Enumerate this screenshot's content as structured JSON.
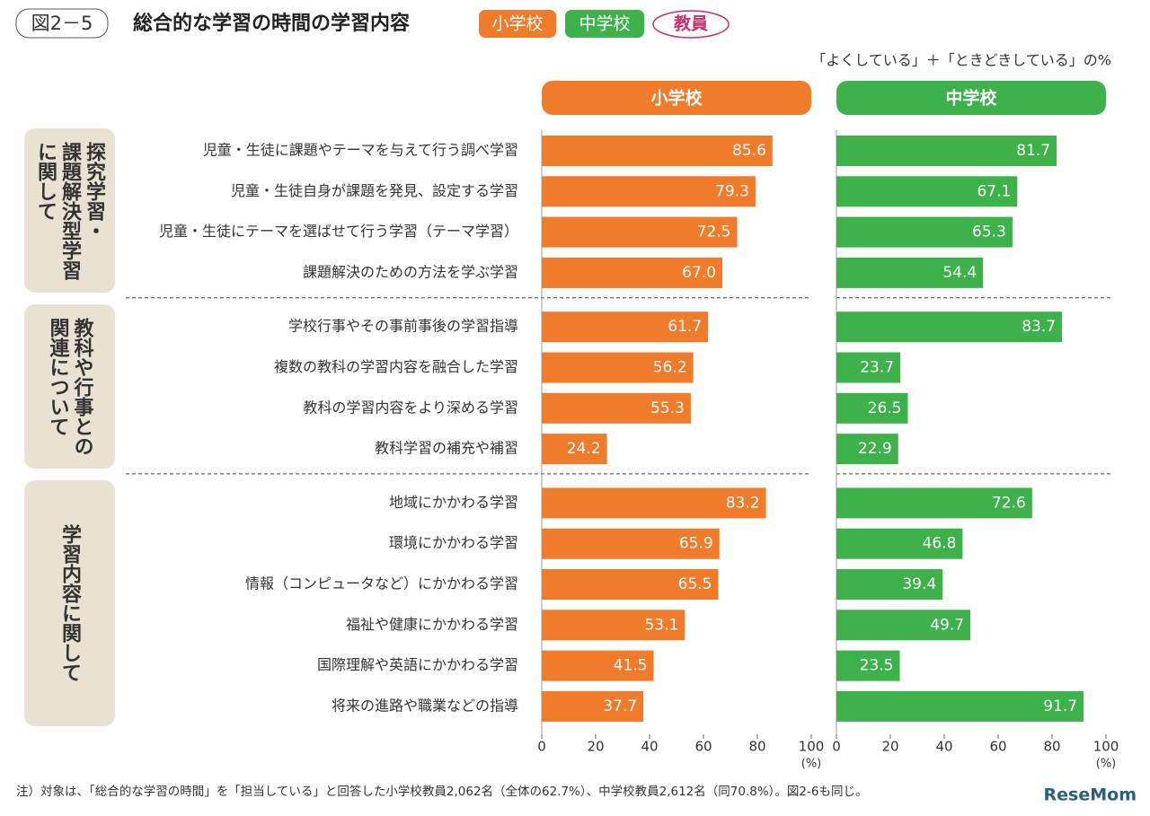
{
  "header": {
    "figure_label": "図2－5",
    "title": "総合的な学習の時間の学習内容",
    "badges": [
      "小学校",
      "中学校",
      "教員"
    ],
    "subtitle": "「よくしている」＋「ときどきしている」の%"
  },
  "chart_data": {
    "type": "bar",
    "orientation": "horizontal",
    "groups": [
      {
        "label": [
          "探究学習・",
          "課題解決型学習",
          "に関して"
        ],
        "categories": [
          "児童・生徒に課題やテーマを与えて行う調べ学習",
          "児童・生徒自身が課題を発見、設定する学習",
          "児童・生徒にテーマを選ばせて行う学習（テーマ学習）",
          "課題解決のための方法を学ぶ学習"
        ]
      },
      {
        "label": [
          "教科や行事との",
          "関連について"
        ],
        "categories": [
          "学校行事やその事前事後の学習指導",
          "複数の教科の学習内容を融合した学習",
          "教科の学習内容をより深める学習",
          "教科学習の補充や補習"
        ]
      },
      {
        "label": [
          "学習内容に関して"
        ],
        "categories": [
          "地域にかかわる学習",
          "環境にかかわる学習",
          "情報（コンピュータなど）にかかわる学習",
          "福祉や健康にかかわる学習",
          "国際理解や英語にかかわる学習",
          "将来の進路や職業などの指導"
        ]
      }
    ],
    "series": [
      {
        "name": "小学校",
        "color": "#f07b2b",
        "values": [
          85.6,
          79.3,
          72.5,
          67.0,
          61.7,
          56.2,
          55.3,
          24.2,
          83.2,
          65.9,
          65.5,
          53.1,
          41.5,
          37.7
        ],
        "value_labels": [
          "85.6",
          "79.3",
          "72.5",
          "67.0",
          "61.7",
          "56.2",
          "55.3",
          "24.2",
          "83.2",
          "65.9",
          "65.5",
          "53.1",
          "41.5",
          "37.7"
        ]
      },
      {
        "name": "中学校",
        "color": "#3db24b",
        "values": [
          81.7,
          67.1,
          65.3,
          54.4,
          83.7,
          23.7,
          26.5,
          22.9,
          72.6,
          46.8,
          39.4,
          49.7,
          23.5,
          91.7
        ],
        "value_labels": [
          "81.7",
          "67.1",
          "65.3",
          "54.4",
          "83.7",
          "23.7",
          "26.5",
          "22.9",
          "72.6",
          "46.8",
          "39.4",
          "49.7",
          "23.5",
          "91.7"
        ]
      }
    ],
    "xlim": [
      0,
      100
    ],
    "xticks": [
      0,
      20,
      40,
      60,
      80,
      100
    ],
    "xlabel": "(%)"
  },
  "note": "注）対象は、「総合的な学習の時間」を「担当している」と回答した小学校教員2,062名（全体の62.7%）、中学校教員2,612名（同70.8%）。図2‐6も同じ。",
  "logo": "ReseMom"
}
